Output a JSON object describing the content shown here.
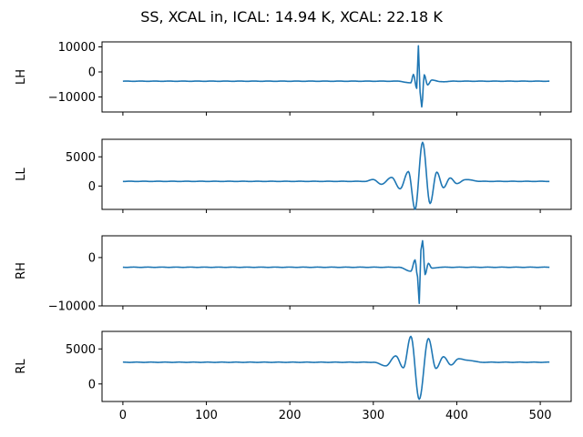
{
  "title": "SS, XCAL in, ICAL: 14.94 K, XCAL: 22.18 K",
  "chart_data": {
    "type": "line",
    "xlim": [
      -25,
      537
    ],
    "x_ticks": [
      0,
      100,
      200,
      300,
      400,
      500
    ],
    "x_tick_labels": [
      "0",
      "100",
      "200",
      "300",
      "400",
      "500"
    ],
    "n_samples": 512,
    "grid": false,
    "panels": [
      {
        "ylabel": "LH",
        "ylim": [
          -16000,
          12000
        ],
        "y_ticks": [
          10000,
          0,
          -10000
        ],
        "y_tick_labels": [
          "10000",
          "0",
          "−10000"
        ],
        "baseline": -3700,
        "key_points": [
          [
            0,
            -3700
          ],
          [
            330,
            -3700
          ],
          [
            345,
            -4400
          ],
          [
            348,
            -1000
          ],
          [
            352,
            -6500
          ],
          [
            354,
            10500
          ],
          [
            356,
            -8000
          ],
          [
            358,
            -14000
          ],
          [
            361,
            -1200
          ],
          [
            365,
            -5200
          ],
          [
            370,
            -3200
          ],
          [
            380,
            -3900
          ],
          [
            400,
            -3700
          ],
          [
            511,
            -3700
          ]
        ]
      },
      {
        "ylabel": "LL",
        "ylim": [
          -4000,
          8000
        ],
        "y_ticks": [
          5000,
          0
        ],
        "y_tick_labels": [
          "5000",
          "0"
        ],
        "baseline": 800,
        "key_points": [
          [
            0,
            800
          ],
          [
            290,
            800
          ],
          [
            300,
            1100
          ],
          [
            310,
            300
          ],
          [
            322,
            1500
          ],
          [
            332,
            -500
          ],
          [
            342,
            2500
          ],
          [
            350,
            -4000
          ],
          [
            359,
            7500
          ],
          [
            368,
            -3000
          ],
          [
            376,
            2400
          ],
          [
            384,
            -300
          ],
          [
            392,
            1400
          ],
          [
            400,
            400
          ],
          [
            410,
            1100
          ],
          [
            430,
            800
          ],
          [
            511,
            800
          ]
        ]
      },
      {
        "ylabel": "RH",
        "ylim": [
          -10000,
          4500
        ],
        "y_ticks": [
          0,
          -10000
        ],
        "y_tick_labels": [
          "0",
          "−10000"
        ],
        "baseline": -2000,
        "key_points": [
          [
            0,
            -2000
          ],
          [
            330,
            -2000
          ],
          [
            345,
            -2800
          ],
          [
            350,
            -500
          ],
          [
            353,
            -4000
          ],
          [
            355,
            -9500
          ],
          [
            357,
            1500
          ],
          [
            359,
            3500
          ],
          [
            362,
            -3500
          ],
          [
            366,
            -1200
          ],
          [
            370,
            -2200
          ],
          [
            380,
            -2000
          ],
          [
            511,
            -2000
          ]
        ]
      },
      {
        "ylabel": "RL",
        "ylim": [
          -2500,
          7500
        ],
        "y_ticks": [
          5000,
          0
        ],
        "y_tick_labels": [
          "5000",
          "0"
        ],
        "baseline": 3100,
        "key_points": [
          [
            0,
            3100
          ],
          [
            300,
            3100
          ],
          [
            315,
            2600
          ],
          [
            327,
            4000
          ],
          [
            336,
            2300
          ],
          [
            345,
            6800
          ],
          [
            355,
            -2200
          ],
          [
            366,
            6500
          ],
          [
            375,
            2200
          ],
          [
            384,
            3900
          ],
          [
            393,
            2700
          ],
          [
            402,
            3600
          ],
          [
            412,
            3400
          ],
          [
            430,
            3100
          ],
          [
            511,
            3100
          ]
        ]
      }
    ]
  }
}
